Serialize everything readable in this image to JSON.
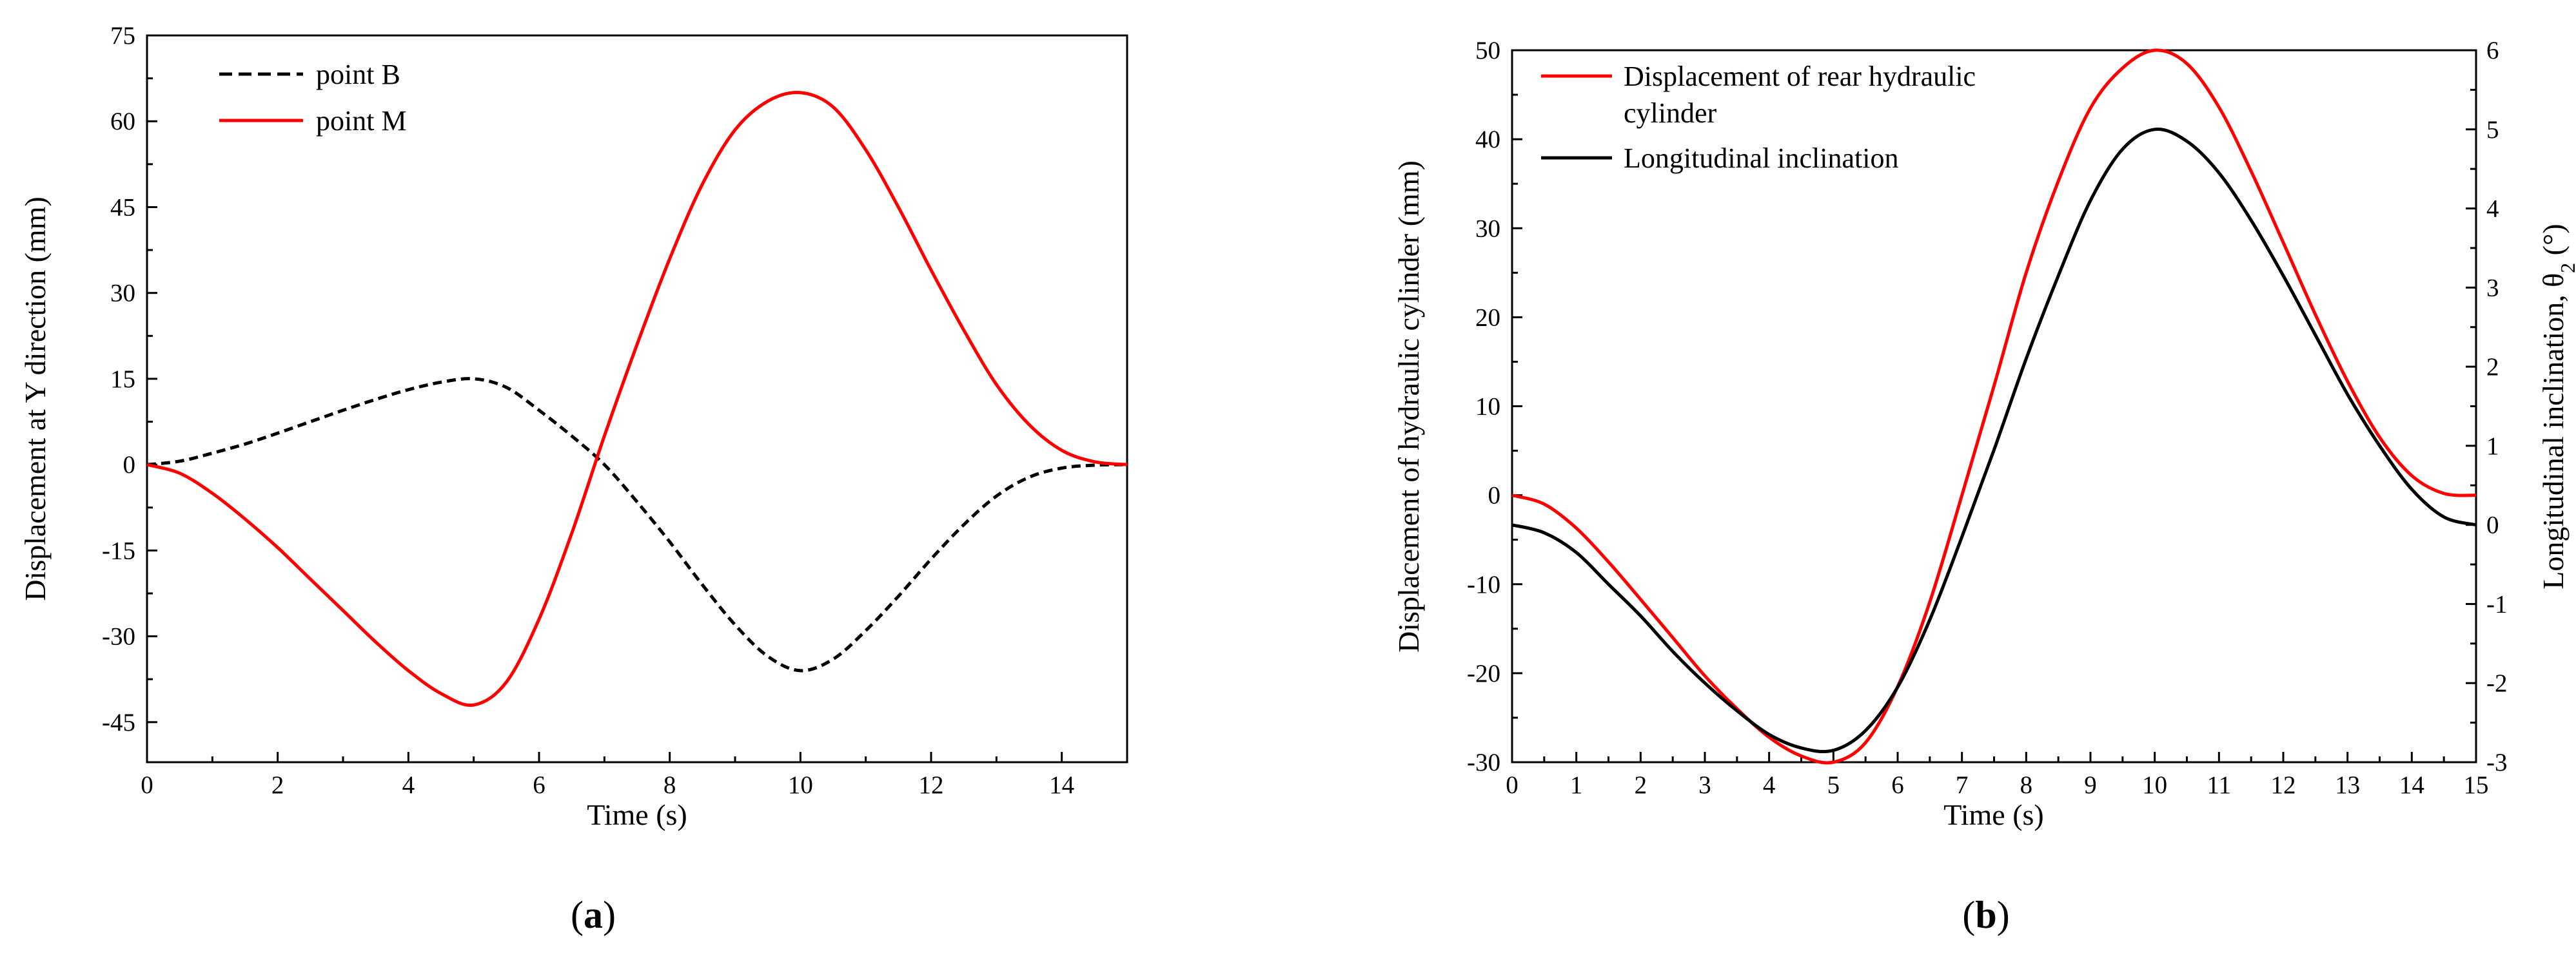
{
  "chart_data": [
    {
      "type": "line",
      "panel_label": "a",
      "xlabel": "Time (s)",
      "ylabel": "Displacement at Y direction (mm)",
      "xlim": [
        0,
        15
      ],
      "ylim": [
        -52,
        75
      ],
      "xticks": [
        0,
        2,
        4,
        6,
        8,
        10,
        12,
        14
      ],
      "yticks": [
        -45,
        -30,
        -15,
        0,
        15,
        30,
        45,
        60,
        75
      ],
      "legend_position": "top-left",
      "series": [
        {
          "name": "point B",
          "color": "#000000",
          "style": "dashed",
          "x": [
            0,
            0.5,
            1,
            1.5,
            2,
            2.5,
            3,
            3.5,
            4,
            4.5,
            5,
            5.5,
            6,
            6.5,
            7,
            7.5,
            8,
            8.5,
            9,
            9.5,
            10,
            10.5,
            11,
            11.5,
            12,
            12.5,
            13,
            13.5,
            14,
            14.5,
            15
          ],
          "y": [
            0,
            0.6,
            2.0,
            3.6,
            5.5,
            7.5,
            9.5,
            11.4,
            13.1,
            14.4,
            15.0,
            13.5,
            9.5,
            5.0,
            0,
            -6.5,
            -13.5,
            -21.0,
            -28.0,
            -33.5,
            -36.0,
            -34.0,
            -29.0,
            -23.0,
            -16.5,
            -10.5,
            -5.5,
            -2.2,
            -0.6,
            -0.1,
            0
          ]
        },
        {
          "name": "point M",
          "color": "#ff0000",
          "style": "solid",
          "x": [
            0,
            0.5,
            1,
            1.5,
            2,
            2.5,
            3,
            3.5,
            4,
            4.5,
            5,
            5.5,
            6,
            6.5,
            7,
            7.5,
            8,
            8.5,
            9,
            9.5,
            10,
            10.5,
            11,
            11.5,
            12,
            12.5,
            13,
            13.5,
            14,
            14.5,
            15
          ],
          "y": [
            0,
            -1.5,
            -5.0,
            -9.5,
            -14.5,
            -20.0,
            -25.5,
            -31.0,
            -36.0,
            -40.0,
            -42.0,
            -38.0,
            -27.0,
            -12.0,
            5.0,
            21.0,
            36.0,
            49.0,
            58.5,
            63.5,
            65.0,
            62.5,
            55.0,
            45.0,
            34.0,
            23.5,
            14.0,
            7.0,
            2.5,
            0.5,
            0
          ]
        }
      ]
    },
    {
      "type": "line",
      "panel_label": "b",
      "xlabel": "Time (s)",
      "ylabel": "Displacement of hydraulic cylinder (mm)",
      "ylabel_right": "Longitudinal inclination, θ",
      "ylabel_right_subscript": "2",
      "ylabel_right_unit": " (°)",
      "xlim": [
        0,
        15
      ],
      "ylim": [
        -30,
        50
      ],
      "ylim_right": [
        -3,
        6
      ],
      "xticks": [
        0,
        1,
        2,
        3,
        4,
        5,
        6,
        7,
        8,
        9,
        10,
        11,
        12,
        13,
        14,
        15
      ],
      "yticks": [
        -30,
        -20,
        -10,
        0,
        10,
        20,
        30,
        40,
        50
      ],
      "yticks_right": [
        -3,
        -2,
        -1,
        0,
        1,
        2,
        3,
        4,
        5,
        6
      ],
      "legend_position": "top-left",
      "series": [
        {
          "name_line1": "Displacement of rear  hydraulic",
          "name_line2": "cylinder",
          "color": "#ff0000",
          "style": "solid",
          "axis": "left",
          "x": [
            0,
            0.5,
            1,
            1.5,
            2,
            2.5,
            3,
            3.5,
            4,
            4.5,
            5,
            5.5,
            6,
            6.5,
            7,
            7.5,
            8,
            8.5,
            9,
            9.5,
            10,
            10.5,
            11,
            11.5,
            12,
            12.5,
            13,
            13.5,
            14,
            14.5,
            15
          ],
          "y": [
            0,
            -1.0,
            -3.7,
            -7.5,
            -11.7,
            -16.0,
            -20.3,
            -24.0,
            -27.2,
            -29.3,
            -30.0,
            -27.8,
            -21.5,
            -12.0,
            0,
            12.3,
            25.0,
            35.3,
            43.5,
            48.0,
            50.0,
            48.5,
            43.6,
            36.4,
            28.4,
            20.3,
            12.8,
            6.5,
            2.2,
            0.2,
            0
          ]
        },
        {
          "name": "Longitudinal inclination",
          "color": "#000000",
          "style": "solid",
          "axis": "right",
          "x": [
            0,
            0.5,
            1,
            1.5,
            2,
            2.5,
            3,
            3.5,
            4,
            4.5,
            5,
            5.5,
            6,
            6.5,
            7,
            7.5,
            8,
            8.5,
            9,
            9.5,
            10,
            10.5,
            11,
            11.5,
            12,
            12.5,
            13,
            13.5,
            14,
            14.5,
            15
          ],
          "y": [
            0,
            -0.1,
            -0.35,
            -0.75,
            -1.15,
            -1.6,
            -2.0,
            -2.35,
            -2.65,
            -2.82,
            -2.85,
            -2.6,
            -2.05,
            -1.2,
            -0.15,
            0.95,
            2.1,
            3.15,
            4.1,
            4.75,
            5.0,
            4.85,
            4.45,
            3.85,
            3.15,
            2.4,
            1.65,
            1.0,
            0.45,
            0.1,
            0
          ]
        }
      ]
    }
  ]
}
